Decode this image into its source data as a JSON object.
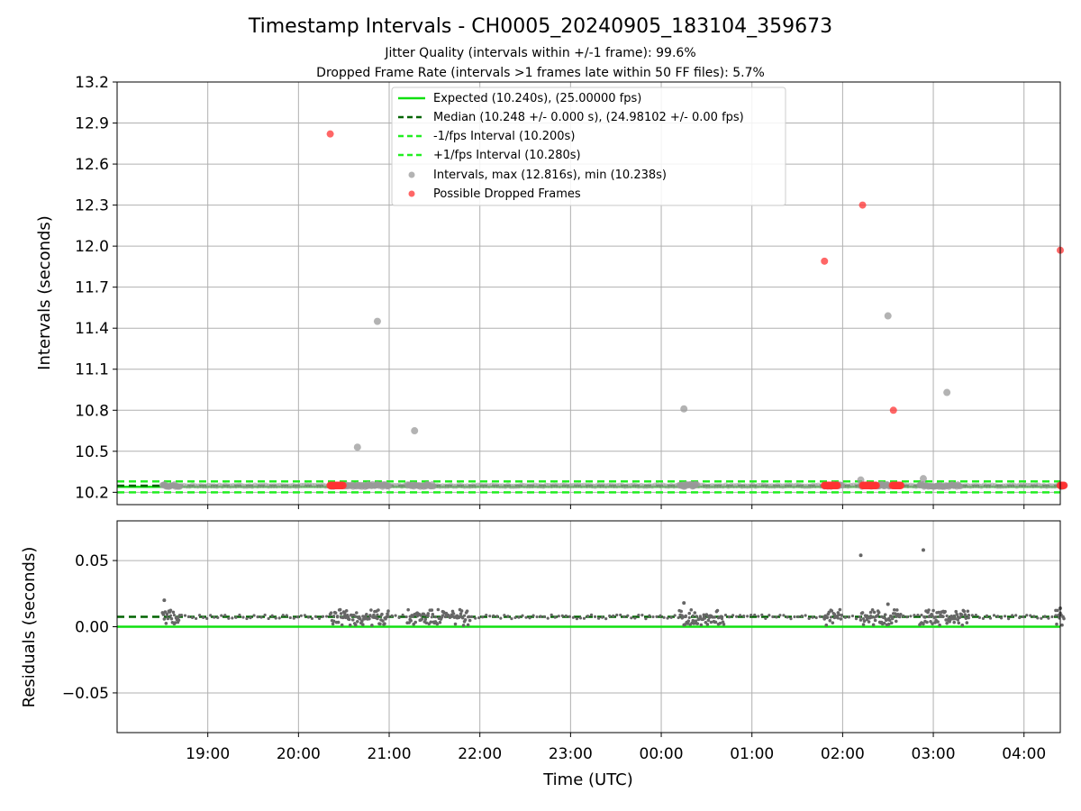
{
  "chart_data": [
    {
      "type": "scatter",
      "title": "Timestamp Intervals - CH0005_20240905_183104_359673",
      "subtitle_lines": [
        "Jitter Quality (intervals within +/-1 frame): 99.6%",
        "Dropped Frame Rate (intervals >1 frames late within 50 FF files): 5.7%"
      ],
      "xlabel": "",
      "ylabel": "Intervals (seconds)",
      "ylim": [
        10.11,
        13.2
      ],
      "yticks": [
        "10.2",
        "10.5",
        "10.8",
        "11.1",
        "11.4",
        "11.7",
        "12.0",
        "12.3",
        "12.6",
        "12.9",
        "13.2"
      ],
      "xlim_hours": [
        18.0,
        28.4
      ],
      "grid": true,
      "legend_position": "top-center",
      "legend": [
        "Expected (10.240s), (25.00000 fps)",
        "Median (10.248 +/- 0.000 s), (24.98102 +/- 0.00 fps)",
        "-1/fps Interval (10.200s)",
        "+1/fps Interval (10.280s)",
        "Intervals, max (12.816s), min (10.238s)",
        "Possible Dropped Frames"
      ],
      "reference_lines": {
        "expected": 10.24,
        "median": 10.248,
        "minus_1_fps": 10.2,
        "plus_1_fps": 10.28
      },
      "intervals_outliers": [
        {
          "x": 20.65,
          "y": 10.53
        },
        {
          "x": 20.87,
          "y": 11.45
        },
        {
          "x": 21.28,
          "y": 10.65
        },
        {
          "x": 24.25,
          "y": 10.81
        },
        {
          "x": 26.2,
          "y": 10.29
        },
        {
          "x": 26.5,
          "y": 11.49
        },
        {
          "x": 26.89,
          "y": 10.3
        },
        {
          "x": 27.15,
          "y": 10.93
        }
      ],
      "intervals_clusters": [
        [
          18.5,
          18.7
        ],
        [
          20.35,
          21.0
        ],
        [
          21.2,
          21.5
        ],
        [
          24.2,
          24.4
        ],
        [
          25.8,
          26.0
        ],
        [
          26.2,
          26.65
        ],
        [
          26.85,
          27.3
        ],
        [
          28.4,
          28.45
        ]
      ],
      "dropped_frames": [
        {
          "x": 20.35,
          "y": 12.82
        },
        {
          "x": 25.8,
          "y": 11.89
        },
        {
          "x": 26.22,
          "y": 12.3
        },
        {
          "x": 26.56,
          "y": 10.8
        },
        {
          "x": 28.4,
          "y": 11.97
        }
      ],
      "dropped_clusters": [
        [
          20.35,
          20.5
        ],
        [
          25.8,
          25.95
        ],
        [
          26.22,
          26.38
        ],
        [
          26.55,
          26.65
        ],
        [
          28.4,
          28.45
        ]
      ],
      "colors": {
        "expected": "#10e010",
        "median": "#006400",
        "interval_lines": "#22ee22",
        "intervals": "#999999",
        "dropped": "#ff3333"
      }
    },
    {
      "type": "scatter",
      "xlabel": "Time (UTC)",
      "ylabel": "Residuals (seconds)",
      "ylim": [
        -0.08,
        0.08
      ],
      "yticks": [
        "−0.05",
        "0.00",
        "0.05"
      ],
      "ytick_values": [
        -0.05,
        0.0,
        0.05
      ],
      "xticks": [
        "19:00",
        "20:00",
        "21:00",
        "22:00",
        "23:00",
        "00:00",
        "01:00",
        "02:00",
        "03:00",
        "04:00"
      ],
      "xtick_hours": [
        19,
        20,
        21,
        22,
        23,
        24,
        25,
        26,
        27,
        28
      ],
      "grid": true,
      "reference_lines": {
        "zero": 0.0,
        "median": 0.0075
      },
      "residual_clusters": [
        [
          18.5,
          18.7
        ],
        [
          20.35,
          21.0
        ],
        [
          21.2,
          21.9
        ],
        [
          24.2,
          24.7
        ],
        [
          25.8,
          26.0
        ],
        [
          26.2,
          26.65
        ],
        [
          26.85,
          27.4
        ],
        [
          28.35,
          28.45
        ]
      ],
      "residual_spikes": [
        {
          "x": 18.52,
          "y": 0.02
        },
        {
          "x": 24.25,
          "y": 0.018
        },
        {
          "x": 26.2,
          "y": 0.054
        },
        {
          "x": 26.89,
          "y": 0.058
        },
        {
          "x": 26.5,
          "y": 0.017
        },
        {
          "x": 28.4,
          "y": 0.014
        }
      ]
    }
  ]
}
